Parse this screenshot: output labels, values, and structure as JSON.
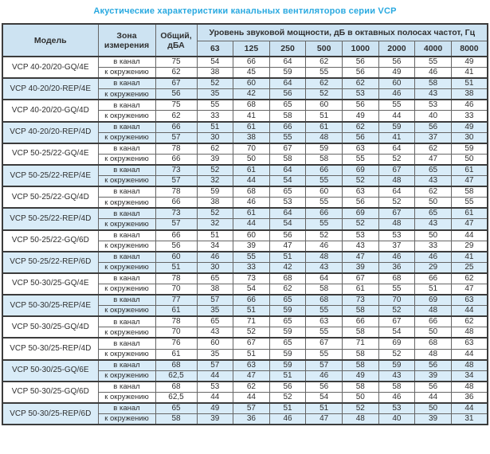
{
  "title": "Акустические характеристики канальных вентиляторов  серии VCP",
  "colors": {
    "title_text": "#29a9e0",
    "header_bg": "#cde3f2",
    "shaded_row_bg": "#d9ecf8",
    "border_dark": "#3c3c3c",
    "text": "#2f2f2f"
  },
  "table": {
    "headers": {
      "model": "Модель",
      "zone": "Зона измерения",
      "total": "Общий, дБА",
      "spl_title": "Уровень звуковой мощности, дБ в октавных полосах частот, Гц",
      "frequencies": [
        "63",
        "125",
        "250",
        "500",
        "1000",
        "2000",
        "4000",
        "8000"
      ]
    },
    "zone_labels": [
      "в канал",
      "к окружению"
    ],
    "groups": [
      {
        "model": "VCP 40-20/20-GQ/4E",
        "shaded": false,
        "rows": [
          {
            "total": "75",
            "levels": [
              54,
              66,
              64,
              62,
              56,
              56,
              55,
              49
            ]
          },
          {
            "total": "62",
            "levels": [
              38,
              45,
              59,
              55,
              56,
              49,
              46,
              41
            ]
          }
        ]
      },
      {
        "model": "VCP 40-20/20-REP/4E",
        "shaded": true,
        "rows": [
          {
            "total": "67",
            "levels": [
              52,
              60,
              64,
              62,
              62,
              60,
              58,
              51
            ]
          },
          {
            "total": "56",
            "levels": [
              35,
              42,
              56,
              52,
              53,
              46,
              43,
              38
            ]
          }
        ]
      },
      {
        "model": "VCP 40-20/20-GQ/4D",
        "shaded": false,
        "rows": [
          {
            "total": "75",
            "levels": [
              55,
              68,
              65,
              60,
              56,
              55,
              53,
              46
            ]
          },
          {
            "total": "62",
            "levels": [
              33,
              41,
              58,
              51,
              49,
              44,
              40,
              33
            ]
          }
        ]
      },
      {
        "model": "VCP 40-20/20-REP/4D",
        "shaded": true,
        "rows": [
          {
            "total": "66",
            "levels": [
              51,
              61,
              66,
              61,
              62,
              59,
              56,
              49
            ]
          },
          {
            "total": "57",
            "levels": [
              30,
              38,
              55,
              48,
              56,
              41,
              37,
              30
            ]
          }
        ]
      },
      {
        "model": "VCP 50-25/22-GQ/4E",
        "shaded": false,
        "rows": [
          {
            "total": "78",
            "levels": [
              62,
              70,
              67,
              59,
              63,
              64,
              62,
              59
            ]
          },
          {
            "total": "66",
            "levels": [
              39,
              50,
              58,
              58,
              55,
              52,
              47,
              50
            ]
          }
        ]
      },
      {
        "model": "VCP 50-25/22-REP/4E",
        "shaded": true,
        "rows": [
          {
            "total": "73",
            "levels": [
              52,
              61,
              64,
              66,
              69,
              67,
              65,
              61
            ]
          },
          {
            "total": "57",
            "levels": [
              32,
              44,
              54,
              55,
              52,
              48,
              43,
              47
            ]
          }
        ]
      },
      {
        "model": "VCP 50-25/22-GQ/4D",
        "shaded": false,
        "rows": [
          {
            "total": "78",
            "levels": [
              59,
              68,
              65,
              60,
              63,
              64,
              62,
              58
            ]
          },
          {
            "total": "66",
            "levels": [
              38,
              46,
              53,
              55,
              56,
              52,
              50,
              55
            ]
          }
        ]
      },
      {
        "model": "VCP 50-25/22-REP/4D",
        "shaded": true,
        "rows": [
          {
            "total": "73",
            "levels": [
              52,
              61,
              64,
              66,
              69,
              67,
              65,
              61
            ]
          },
          {
            "total": "57",
            "levels": [
              32,
              44,
              54,
              55,
              52,
              48,
              43,
              47
            ]
          }
        ]
      },
      {
        "model": "VCP 50-25/22-GQ/6D",
        "shaded": false,
        "rows": [
          {
            "total": "66",
            "levels": [
              51,
              60,
              56,
              52,
              53,
              53,
              50,
              44
            ]
          },
          {
            "total": "56",
            "levels": [
              34,
              39,
              47,
              46,
              43,
              37,
              33,
              29
            ]
          }
        ]
      },
      {
        "model": "VCP 50-25/22-REP/6D",
        "shaded": true,
        "rows": [
          {
            "total": "60",
            "levels": [
              46,
              55,
              51,
              48,
              47,
              46,
              46,
              41
            ]
          },
          {
            "total": "51",
            "levels": [
              30,
              33,
              42,
              43,
              39,
              36,
              29,
              25
            ]
          }
        ]
      },
      {
        "model": "VCP 50-30/25-GQ/4E",
        "shaded": false,
        "rows": [
          {
            "total": "78",
            "levels": [
              65,
              73,
              68,
              64,
              67,
              68,
              66,
              62
            ]
          },
          {
            "total": "70",
            "levels": [
              38,
              54,
              62,
              58,
              61,
              55,
              51,
              47
            ]
          }
        ]
      },
      {
        "model": "VCP 50-30/25-REP/4E",
        "shaded": true,
        "rows": [
          {
            "total": "77",
            "levels": [
              57,
              66,
              65,
              68,
              73,
              70,
              69,
              63
            ]
          },
          {
            "total": "61",
            "levels": [
              35,
              51,
              59,
              55,
              58,
              52,
              48,
              44
            ]
          }
        ]
      },
      {
        "model": "VCP 50-30/25-GQ/4D",
        "shaded": false,
        "rows": [
          {
            "total": "78",
            "levels": [
              65,
              71,
              65,
              63,
              66,
              67,
              66,
              62
            ]
          },
          {
            "total": "70",
            "levels": [
              43,
              52,
              59,
              55,
              58,
              54,
              50,
              48
            ]
          }
        ]
      },
      {
        "model": "VCP 50-30/25-REP/4D",
        "shaded": false,
        "rows": [
          {
            "total": "76",
            "levels": [
              60,
              67,
              65,
              67,
              71,
              69,
              68,
              63
            ]
          },
          {
            "total": "61",
            "levels": [
              35,
              51,
              59,
              55,
              58,
              52,
              48,
              44
            ]
          }
        ]
      },
      {
        "model": "VCP 50-30/25-GQ/6E",
        "shaded": true,
        "rows": [
          {
            "total": "68",
            "levels": [
              57,
              63,
              59,
              57,
              58,
              59,
              56,
              48
            ]
          },
          {
            "total": "62,5",
            "levels": [
              44,
              47,
              51,
              46,
              49,
              43,
              39,
              34
            ]
          }
        ]
      },
      {
        "model": "VCP 50-30/25-GQ/6D",
        "shaded": false,
        "rows": [
          {
            "total": "68",
            "levels": [
              53,
              62,
              56,
              56,
              58,
              58,
              56,
              48
            ]
          },
          {
            "total": "62,5",
            "levels": [
              44,
              44,
              52,
              54,
              50,
              46,
              44,
              36
            ]
          }
        ]
      },
      {
        "model": "VCP 50-30/25-REP/6D",
        "shaded": true,
        "rows": [
          {
            "total": "65",
            "levels": [
              49,
              57,
              51,
              51,
              52,
              53,
              50,
              44
            ]
          },
          {
            "total": "58",
            "levels": [
              39,
              36,
              46,
              47,
              48,
              40,
              39,
              31
            ]
          }
        ]
      }
    ]
  }
}
